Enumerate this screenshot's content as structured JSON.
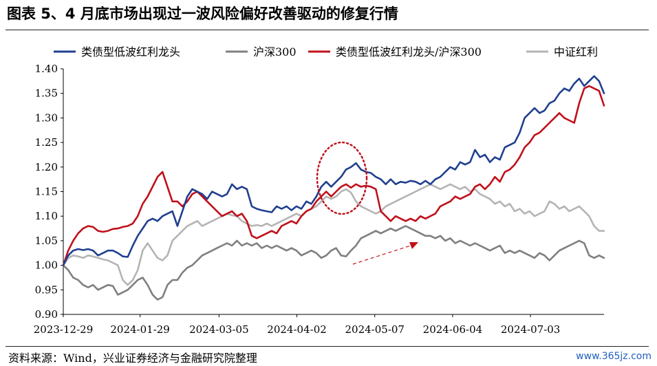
{
  "header": {
    "title": "图表 5、4 月底市场出现过一波风险偏好改善驱动的修复行情"
  },
  "footer": {
    "source": "资料来源：Wind，兴业证券经济与金融研究院整理",
    "watermark": "www.365jz.com"
  },
  "chart_data": {
    "type": "line",
    "ylim": [
      0.9,
      1.4
    ],
    "yticks": [
      "0.90",
      "0.95",
      "1.00",
      "1.05",
      "1.10",
      "1.15",
      "1.20",
      "1.25",
      "1.30",
      "1.35",
      "1.40"
    ],
    "xticks": [
      "2023-12-29",
      "2024-01-29",
      "2024-03-05",
      "2024-04-02",
      "2024-05-07",
      "2024-06-04",
      "2024-07-03"
    ],
    "grid": false,
    "legend_position": "top",
    "annotations": {
      "dotted_ellipse": "around late-April peak",
      "dashed_arrow": "rising trend in 沪深300 in late April - mid May"
    },
    "series": [
      {
        "name": "类债型低波红利龙头",
        "color": "#1f3f8f",
        "values": [
          1.0,
          1.02,
          1.03,
          1.033,
          1.031,
          1.033,
          1.03,
          1.02,
          1.025,
          1.03,
          1.03,
          1.025,
          1.018,
          1.017,
          1.04,
          1.06,
          1.075,
          1.09,
          1.095,
          1.09,
          1.1,
          1.105,
          1.11,
          1.08,
          1.11,
          1.14,
          1.155,
          1.15,
          1.145,
          1.135,
          1.15,
          1.145,
          1.14,
          1.145,
          1.165,
          1.155,
          1.16,
          1.155,
          1.12,
          1.115,
          1.112,
          1.11,
          1.108,
          1.12,
          1.115,
          1.12,
          1.112,
          1.12,
          1.115,
          1.13,
          1.125,
          1.14,
          1.16,
          1.17,
          1.16,
          1.17,
          1.18,
          1.195,
          1.2,
          1.208,
          1.195,
          1.19,
          1.188,
          1.18,
          1.175,
          1.165,
          1.175,
          1.165,
          1.17,
          1.168,
          1.172,
          1.17,
          1.165,
          1.172,
          1.165,
          1.175,
          1.18,
          1.19,
          1.2,
          1.195,
          1.21,
          1.205,
          1.21,
          1.235,
          1.22,
          1.225,
          1.21,
          1.22,
          1.215,
          1.24,
          1.245,
          1.25,
          1.27,
          1.3,
          1.31,
          1.32,
          1.31,
          1.315,
          1.33,
          1.335,
          1.35,
          1.36,
          1.355,
          1.37,
          1.38,
          1.365,
          1.375,
          1.385,
          1.375,
          1.35
        ]
      },
      {
        "name": "沪深300",
        "color": "#7f7f7f",
        "values": [
          1.0,
          0.99,
          0.975,
          0.97,
          0.96,
          0.955,
          0.96,
          0.95,
          0.955,
          0.96,
          0.958,
          0.94,
          0.945,
          0.95,
          0.96,
          0.97,
          0.975,
          0.96,
          0.94,
          0.93,
          0.935,
          0.96,
          0.97,
          0.97,
          0.985,
          0.995,
          1.0,
          1.01,
          1.02,
          1.025,
          1.03,
          1.035,
          1.04,
          1.045,
          1.04,
          1.05,
          1.04,
          1.045,
          1.04,
          1.045,
          1.035,
          1.04,
          1.035,
          1.04,
          1.035,
          1.03,
          1.035,
          1.03,
          1.02,
          1.025,
          1.03,
          1.025,
          1.015,
          1.02,
          1.03,
          1.035,
          1.02,
          1.018,
          1.03,
          1.04,
          1.055,
          1.06,
          1.065,
          1.07,
          1.065,
          1.07,
          1.075,
          1.07,
          1.075,
          1.08,
          1.075,
          1.07,
          1.065,
          1.06,
          1.06,
          1.055,
          1.06,
          1.05,
          1.055,
          1.045,
          1.05,
          1.045,
          1.04,
          1.045,
          1.04,
          1.035,
          1.03,
          1.035,
          1.04,
          1.025,
          1.03,
          1.025,
          1.03,
          1.025,
          1.02,
          1.015,
          1.025,
          1.02,
          1.01,
          1.02,
          1.03,
          1.035,
          1.04,
          1.045,
          1.05,
          1.045,
          1.02,
          1.015,
          1.02,
          1.015
        ]
      },
      {
        "name": "类债型低波红利龙头/沪深300",
        "color": "#c0101a",
        "values": [
          1.0,
          1.03,
          1.05,
          1.065,
          1.075,
          1.08,
          1.078,
          1.07,
          1.068,
          1.07,
          1.074,
          1.075,
          1.078,
          1.08,
          1.085,
          1.1,
          1.125,
          1.14,
          1.16,
          1.18,
          1.19,
          1.16,
          1.13,
          1.13,
          1.12,
          1.13,
          1.145,
          1.15,
          1.14,
          1.13,
          1.12,
          1.11,
          1.1,
          1.105,
          1.11,
          1.1,
          1.105,
          1.09,
          1.06,
          1.055,
          1.06,
          1.065,
          1.07,
          1.065,
          1.08,
          1.085,
          1.09,
          1.085,
          1.1,
          1.11,
          1.115,
          1.13,
          1.14,
          1.15,
          1.14,
          1.15,
          1.16,
          1.165,
          1.158,
          1.165,
          1.16,
          1.162,
          1.16,
          1.155,
          1.11,
          1.1,
          1.09,
          1.1,
          1.095,
          1.09,
          1.095,
          1.09,
          1.1,
          1.095,
          1.1,
          1.105,
          1.12,
          1.125,
          1.13,
          1.14,
          1.135,
          1.14,
          1.145,
          1.16,
          1.165,
          1.155,
          1.165,
          1.18,
          1.17,
          1.19,
          1.195,
          1.205,
          1.22,
          1.24,
          1.25,
          1.265,
          1.27,
          1.28,
          1.29,
          1.3,
          1.31,
          1.3,
          1.295,
          1.29,
          1.33,
          1.36,
          1.365,
          1.36,
          1.355,
          1.325
        ]
      },
      {
        "name": "中证红利",
        "color": "#b4b4b4",
        "values": [
          1.0,
          1.015,
          1.02,
          1.018,
          1.015,
          1.02,
          1.018,
          1.015,
          1.012,
          1.01,
          1.005,
          1.0,
          0.97,
          0.96,
          0.97,
          0.99,
          1.03,
          1.045,
          1.03,
          1.015,
          1.01,
          1.02,
          1.05,
          1.06,
          1.07,
          1.08,
          1.085,
          1.09,
          1.08,
          1.085,
          1.09,
          1.095,
          1.1,
          1.105,
          1.102,
          1.1,
          1.09,
          1.085,
          1.08,
          1.082,
          1.08,
          1.085,
          1.08,
          1.085,
          1.09,
          1.095,
          1.1,
          1.105,
          1.1,
          1.11,
          1.115,
          1.12,
          1.13,
          1.14,
          1.135,
          1.14,
          1.15,
          1.155,
          1.148,
          1.13,
          1.12,
          1.115,
          1.11,
          1.105,
          1.11,
          1.12,
          1.125,
          1.13,
          1.135,
          1.14,
          1.145,
          1.15,
          1.155,
          1.16,
          1.165,
          1.16,
          1.155,
          1.16,
          1.165,
          1.16,
          1.155,
          1.16,
          1.15,
          1.155,
          1.145,
          1.14,
          1.135,
          1.125,
          1.13,
          1.12,
          1.125,
          1.11,
          1.115,
          1.105,
          1.11,
          1.1,
          1.105,
          1.11,
          1.13,
          1.125,
          1.115,
          1.12,
          1.11,
          1.115,
          1.12,
          1.11,
          1.1,
          1.08,
          1.07,
          1.07
        ]
      }
    ]
  }
}
